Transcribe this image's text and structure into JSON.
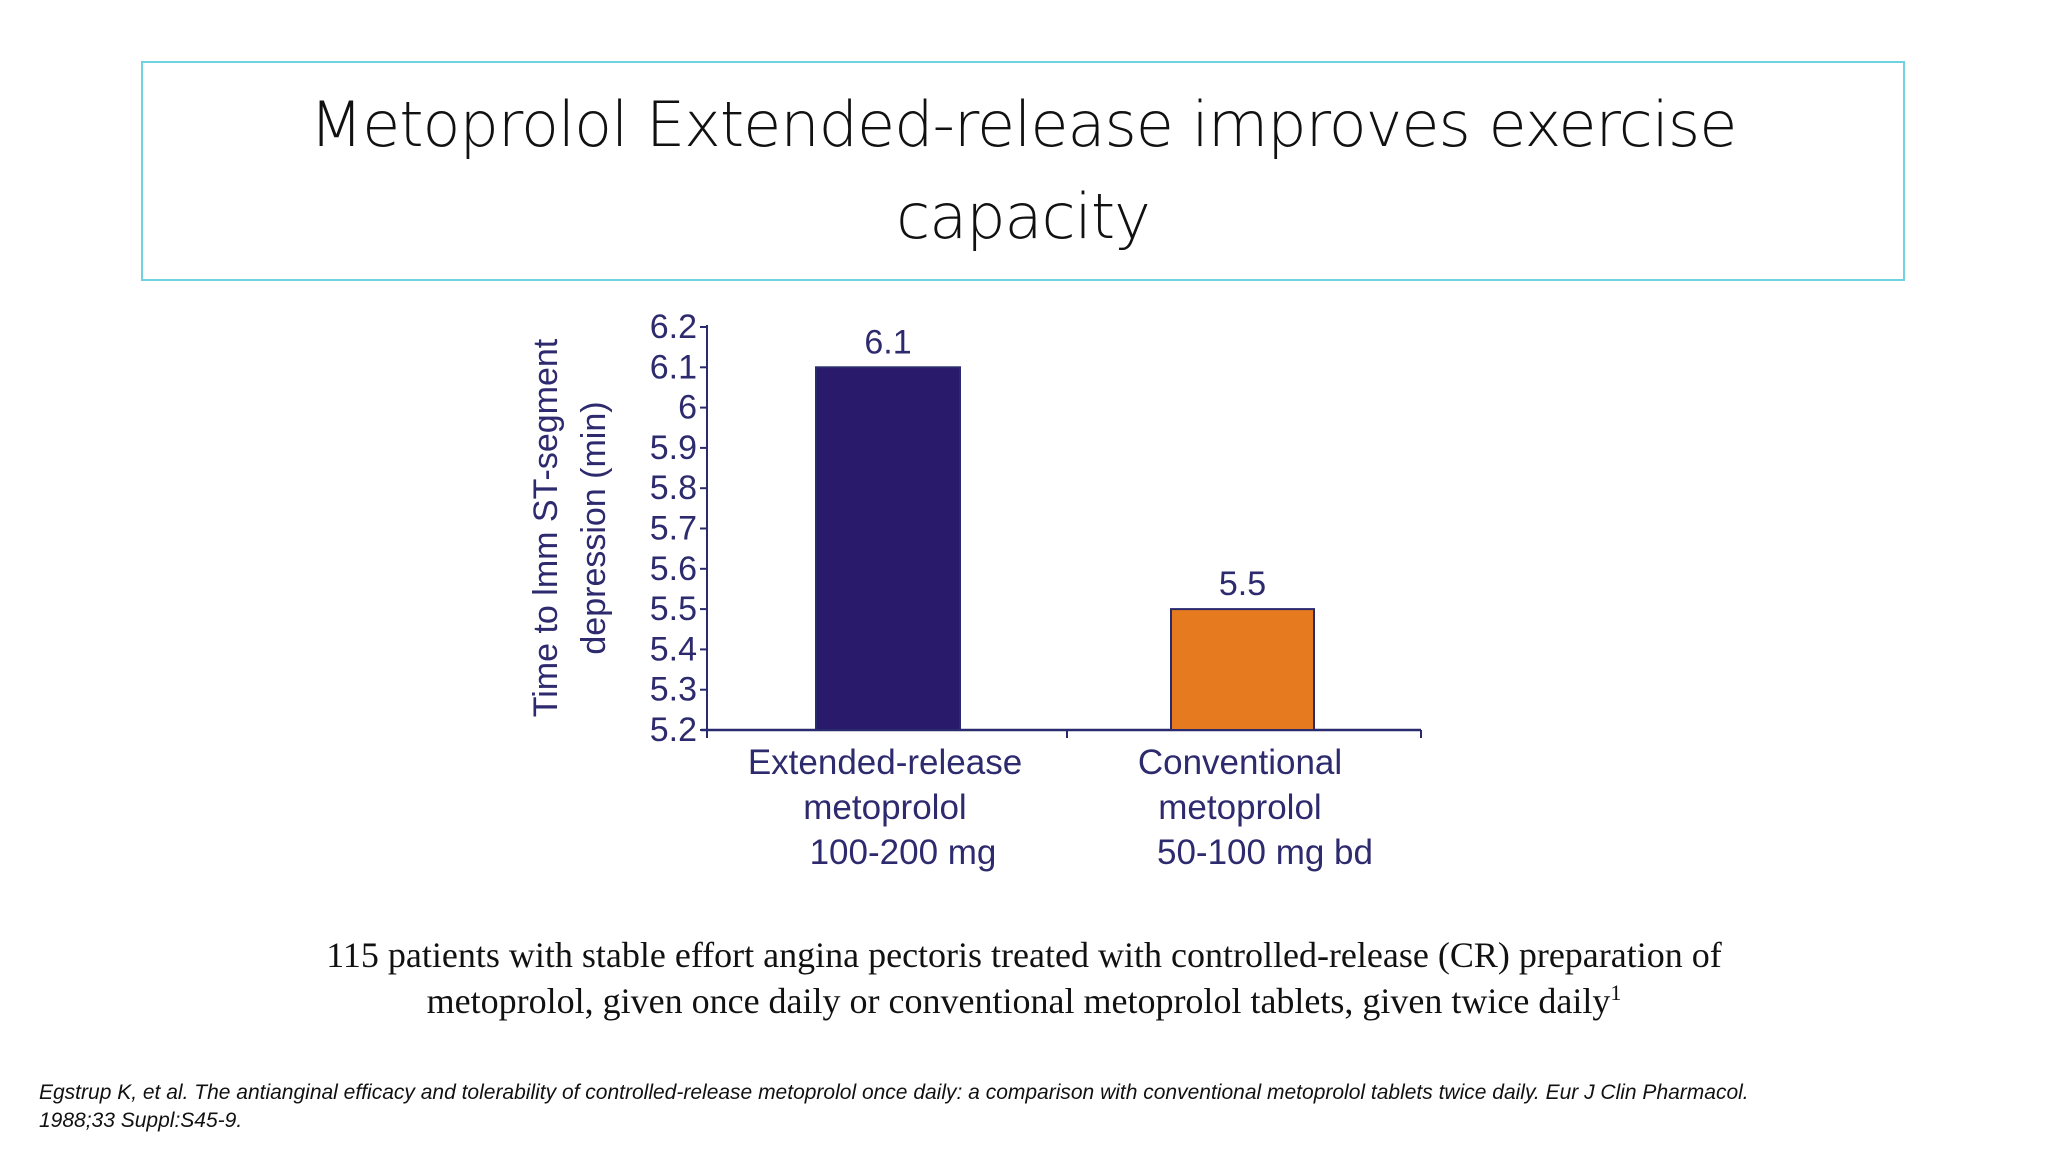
{
  "slide": {
    "title_lines": [
      "Metoprolol Extended-release improves exercise",
      "capacity"
    ],
    "caption_lines": [
      "115 patients with stable effort angina pectoris treated with controlled-release (CR) preparation of",
      "metoprolol, given once daily or conventional metoprolol tablets, given twice daily"
    ],
    "caption_superscript": "1",
    "reference_lines": [
      "Egstrup K, et al. The antianginal efficacy and tolerability of controlled-release metoprolol once daily: a comparison with conventional metoprolol tablets twice daily. Eur J Clin Pharmacol.",
      "1988;33 Suppl:S45-9."
    ]
  },
  "chart_data": {
    "type": "bar",
    "title": "",
    "ylabel_lines": [
      "Time to lmm ST-segment",
      "depression (min)"
    ],
    "xlabel": "",
    "ylim": [
      5.2,
      6.2
    ],
    "yticks": [
      "5.2",
      "5.3",
      "5.4",
      "5.5",
      "5.6",
      "5.7",
      "5.8",
      "5.9",
      "6",
      "6.1",
      "6.2"
    ],
    "grid": false,
    "categories": [
      [
        "Extended-release",
        "metoprolol",
        "100-200 mg"
      ],
      [
        "Conventional",
        "metoprolol",
        "50-100 mg bd"
      ]
    ],
    "values": [
      6.1,
      5.5
    ],
    "data_labels": [
      "6.1",
      "5.5"
    ],
    "bar_colors": [
      "#2a1a6b",
      "#e57a1e"
    ],
    "axis_color": "#2a2a6e",
    "text_color": "#2e2a6e"
  }
}
